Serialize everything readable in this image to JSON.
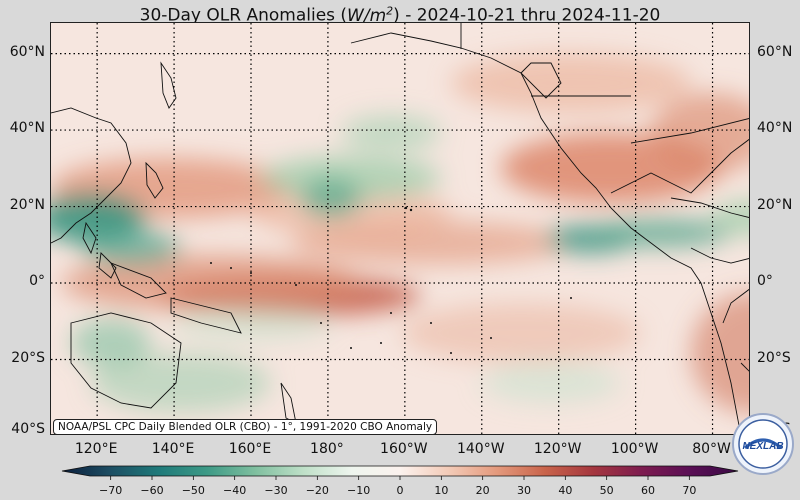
{
  "title": {
    "prefix": "30-Day OLR Anomalies (",
    "unit_base": "W/m",
    "unit_exp": "2",
    "suffix": ") - 2024-10-21 thru 2024-11-20"
  },
  "map": {
    "lat_labels": [
      "60°N",
      "40°N",
      "20°N",
      "0°",
      "20°S",
      "40°S"
    ],
    "lat_values": [
      60,
      40,
      20,
      0,
      -20,
      -40
    ],
    "lon_labels": [
      "120°E",
      "140°E",
      "160°E",
      "180°",
      "160°W",
      "140°W",
      "120°W",
      "100°W",
      "80°W"
    ],
    "lon_values": [
      120,
      140,
      160,
      180,
      200,
      220,
      240,
      260,
      280
    ],
    "lon_range": [
      108,
      290
    ],
    "lat_range": [
      -40,
      68
    ]
  },
  "credit": "NOAA/PSL CPC Daily Blended OLR (CBO) - 1°, 1991-2020 CBO Anomaly",
  "colorbar": {
    "ticks": [
      "−70",
      "−60",
      "−50",
      "−40",
      "−30",
      "−20",
      "−10",
      "0",
      "10",
      "20",
      "30",
      "40",
      "50",
      "60",
      "70"
    ],
    "tick_values": [
      -70,
      -60,
      -50,
      -40,
      -30,
      -20,
      -10,
      0,
      10,
      20,
      30,
      40,
      50,
      60,
      70
    ],
    "range": [
      -75,
      75
    ],
    "colors": [
      "#0b1e3c",
      "#1d4e63",
      "#1f7a7a",
      "#3d9a86",
      "#7fbf9f",
      "#bfe0c8",
      "#eef5ee",
      "#fbf2ee",
      "#f3cbb8",
      "#e49a7d",
      "#c9644b",
      "#a5373f",
      "#7d1c4f",
      "#5a0f55",
      "#3a0a45"
    ]
  },
  "logo_text": "NEXLAB",
  "colors": {
    "background": "#d9d9d9",
    "neutral": "#f6e6df",
    "positive": "#d9775a",
    "negative": "#2f8f7a"
  }
}
